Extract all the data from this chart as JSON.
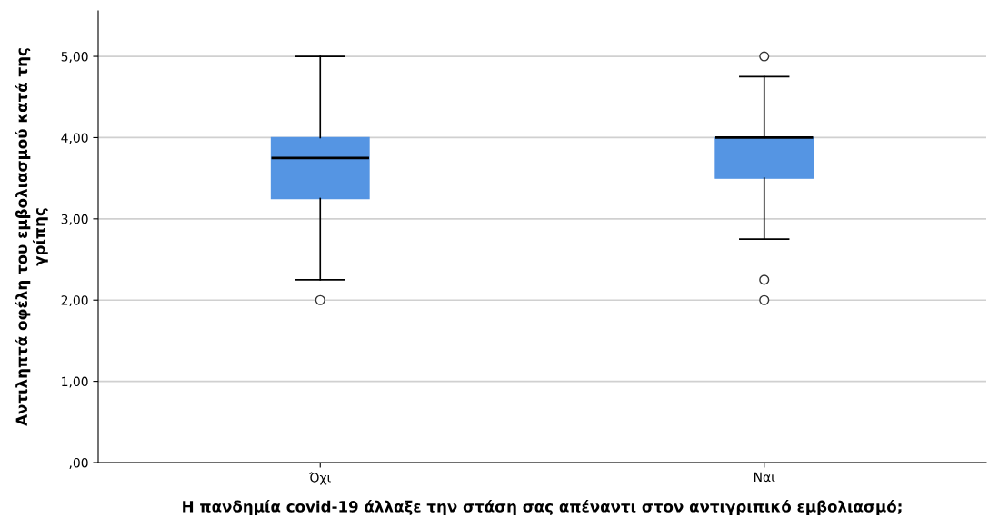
{
  "chart_data": {
    "type": "box",
    "xlabel": "Η πανδημία covid-19 άλλαξε την στάση σας απέναντι στον αντιγριπικό εμβολιασμό;",
    "ylabel": "Αντιληπτά οφέλη του εμβολιασμού κατά της\nγρίπης",
    "categories": [
      "Όχι",
      "Ναι"
    ],
    "color": "#5595e3",
    "boxes": [
      {
        "low": 2.25,
        "q1": 3.25,
        "median": 3.75,
        "q3": 4.0,
        "high": 5.0,
        "outliers": [
          2.0
        ]
      },
      {
        "low": 2.75,
        "q1": 3.5,
        "median": 4.0,
        "q3": 4.0,
        "high": 4.75,
        "outliers": [
          2.0,
          2.25,
          5.0
        ]
      }
    ],
    "ylim": [
      0,
      5.56
    ],
    "yticks": [
      {
        "value": 0,
        "label": ",00"
      },
      {
        "value": 1,
        "label": "1,00"
      },
      {
        "value": 2,
        "label": "2,00"
      },
      {
        "value": 3,
        "label": "3,00"
      },
      {
        "value": 4,
        "label": "4,00"
      },
      {
        "value": 5,
        "label": "5,00"
      }
    ],
    "grid": "y"
  }
}
